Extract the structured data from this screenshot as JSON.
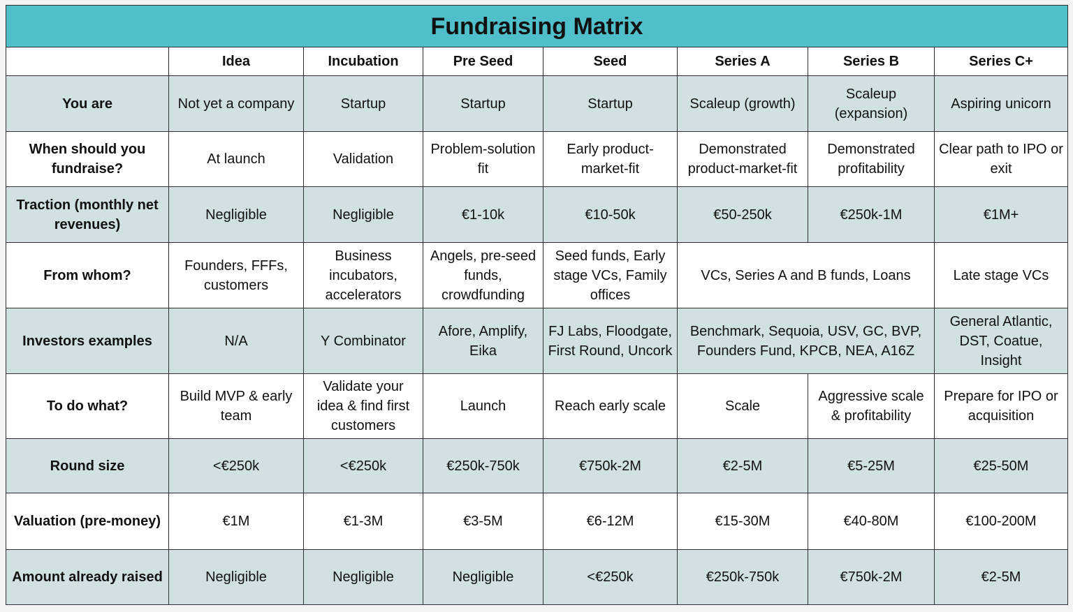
{
  "title": "Fundraising Matrix",
  "columns": [
    "Idea",
    "Incubation",
    "Pre Seed",
    "Seed",
    "Series A",
    "Series B",
    "Series C+"
  ],
  "rows": [
    {
      "label": "You are",
      "cells": [
        "Not yet a company",
        "Startup",
        "Startup",
        "Startup",
        "Scaleup (growth)",
        "Scaleup (expansion)",
        "Aspiring unicorn"
      ]
    },
    {
      "label": "When should you fundraise?",
      "cells": [
        "At launch",
        "Validation",
        "Problem-solution fit",
        "Early product-market-fit",
        "Demonstrated product-market-fit",
        "Demonstrated profitability",
        "Clear path to IPO or exit"
      ]
    },
    {
      "label": "Traction (monthly net revenues)",
      "cells": [
        "Negligible",
        "Negligible",
        "€1-10k",
        "€10-50k",
        "€50-250k",
        "€250k-1M",
        "€1M+"
      ]
    },
    {
      "label": "From whom?",
      "cells": [
        "Founders, FFFs, customers",
        "Business incubators, accelerators",
        "Angels, pre-seed funds, crowdfunding",
        "Seed funds, Early stage VCs, Family offices",
        "VCs, Series A and B funds, Loans",
        "Late stage VCs"
      ]
    },
    {
      "label": "Investors examples",
      "cells": [
        "N/A",
        "Y Combinator",
        "Afore, Amplify, Eika",
        "FJ Labs, Floodgate, First Round, Uncork",
        "Benchmark, Sequoia, USV, GC, BVP, Founders Fund, KPCB, NEA, A16Z",
        "General Atlantic, DST, Coatue, Insight"
      ]
    },
    {
      "label": "To do what?",
      "cells": [
        "Build MVP & early team",
        "Validate your idea & find first customers",
        "Launch",
        "Reach early scale",
        "Scale",
        "Aggressive scale & profitability",
        "Prepare for IPO or acquisition"
      ]
    },
    {
      "label": "Round size",
      "cells": [
        "<€250k",
        "<€250k",
        "€250k-750k",
        "€750k-2M",
        "€2-5M",
        "€5-25M",
        "€25-50M"
      ]
    },
    {
      "label": "Valuation (pre-money)",
      "cells": [
        "€1M",
        "€1-3M",
        "€3-5M",
        "€6-12M",
        "€15-30M",
        "€40-80M",
        "€100-200M"
      ]
    },
    {
      "label": "Amount already raised",
      "cells": [
        "Negligible",
        "Negligible",
        "Negligible",
        "<€250k",
        "€250k-750k",
        "€750k-2M",
        "€2-5M"
      ]
    }
  ]
}
